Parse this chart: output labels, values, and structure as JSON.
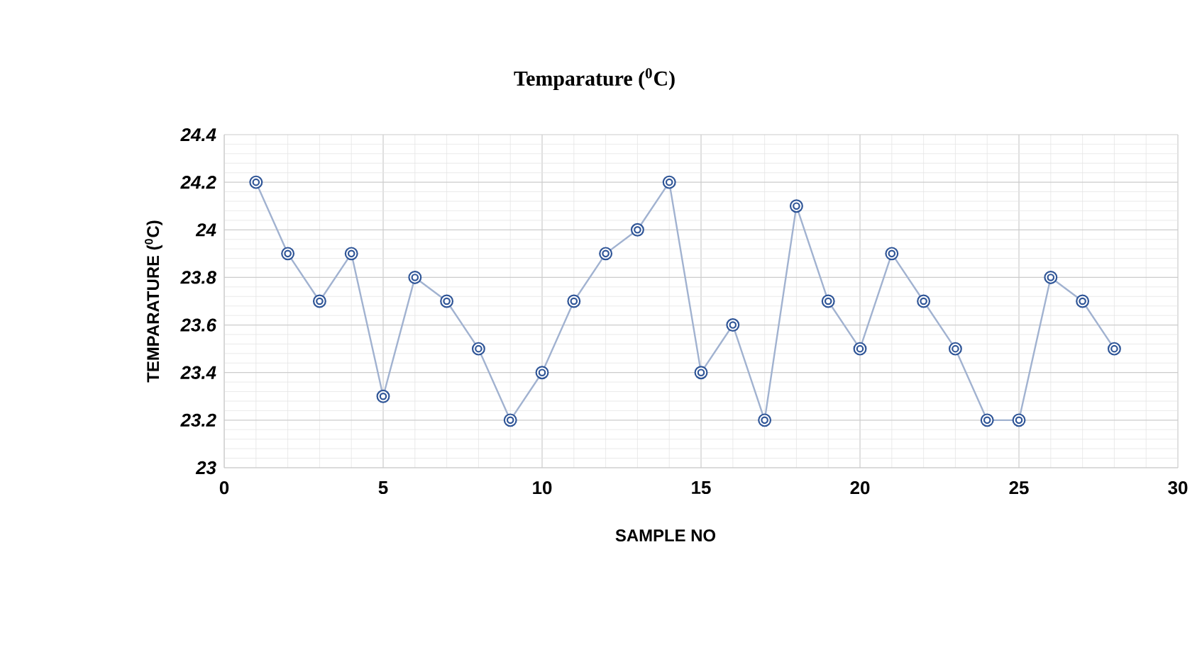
{
  "chart_data": {
    "type": "line",
    "title": "Temparature ($^{0}$C)",
    "xlabel": "SAMPLE NO",
    "ylabel": "TEMPARATURE ($^{0}$C)",
    "x": [
      1,
      2,
      3,
      4,
      5,
      6,
      7,
      8,
      9,
      10,
      11,
      12,
      13,
      14,
      15,
      16,
      17,
      18,
      19,
      20,
      21,
      22,
      23,
      24,
      25,
      26,
      27,
      28
    ],
    "series": [
      {
        "color": "#2f5597",
        "values": [
          24.2,
          23.9,
          23.7,
          23.9,
          23.3,
          23.8,
          23.7,
          23.5,
          23.2,
          23.4,
          23.7,
          23.9,
          24.0,
          24.2,
          23.4,
          23.6,
          23.2,
          24.1,
          23.7,
          23.5,
          23.9,
          23.7,
          23.5,
          23.2,
          23.2,
          23.8,
          23.7,
          23.5
        ]
      }
    ],
    "xlim": [
      0,
      30
    ],
    "xticks": [
      0,
      5,
      10,
      15,
      20,
      25,
      30
    ],
    "ylim": [
      23,
      24.4
    ],
    "yticks": [
      23,
      23.2,
      23.4,
      23.6,
      23.8,
      {
        "value": 24,
        "label": "24"
      },
      24.2,
      24.4
    ],
    "grid": true,
    "marker": "circle",
    "line_style": "solid"
  }
}
